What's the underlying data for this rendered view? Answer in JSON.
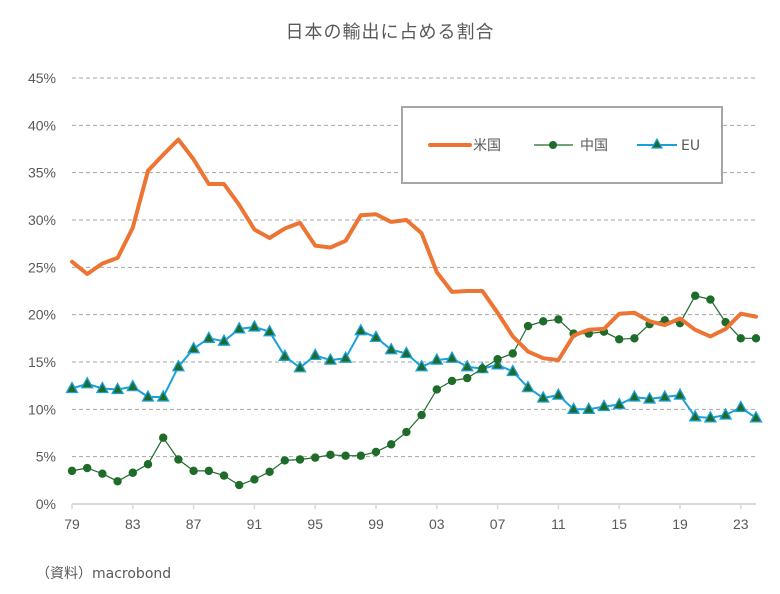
{
  "chart_data": {
    "type": "line",
    "title": "日本の輸出に占める割合",
    "xlabel": "",
    "ylabel": "",
    "ylim": [
      0,
      45
    ],
    "y_ticks": [
      "0%",
      "5%",
      "10%",
      "15%",
      "20%",
      "25%",
      "30%",
      "35%",
      "40%",
      "45%"
    ],
    "y_tick_values": [
      0,
      5,
      10,
      15,
      20,
      25,
      30,
      35,
      40,
      45
    ],
    "x_ticks": [
      "79",
      "83",
      "87",
      "91",
      "95",
      "99",
      "03",
      "07",
      "11",
      "15",
      "19",
      "23"
    ],
    "x_tick_years": [
      1979,
      1983,
      1987,
      1991,
      1995,
      1999,
      2003,
      2007,
      2011,
      2015,
      2019,
      2023
    ],
    "xlim": [
      1979,
      2024
    ],
    "grid": "horizontal-dashed",
    "legend_position": "top-right",
    "x": [
      1979,
      1980,
      1981,
      1982,
      1983,
      1984,
      1985,
      1986,
      1987,
      1988,
      1989,
      1990,
      1991,
      1992,
      1993,
      1994,
      1995,
      1996,
      1997,
      1998,
      1999,
      2000,
      2001,
      2002,
      2003,
      2004,
      2005,
      2006,
      2007,
      2008,
      2009,
      2010,
      2011,
      2012,
      2013,
      2014,
      2015,
      2016,
      2017,
      2018,
      2019,
      2020,
      2021,
      2022,
      2023,
      2024
    ],
    "series": [
      {
        "name": "米国",
        "color": "#ED7533",
        "marker": "none",
        "values": [
          25.6,
          24.3,
          25.4,
          26.0,
          29.2,
          35.2,
          36.9,
          38.5,
          36.4,
          33.8,
          33.8,
          31.6,
          29.0,
          28.1,
          29.1,
          29.7,
          27.3,
          27.1,
          27.8,
          30.5,
          30.6,
          29.8,
          30.0,
          28.6,
          24.5,
          22.4,
          22.5,
          22.5,
          20.2,
          17.7,
          16.1,
          15.4,
          15.2,
          17.8,
          18.4,
          18.5,
          20.1,
          20.2,
          19.3,
          18.9,
          19.6,
          18.4,
          17.7,
          18.5,
          20.1,
          19.8
        ]
      },
      {
        "name": "中国",
        "color": "#1E6B2A",
        "marker": "circle",
        "values": [
          3.5,
          3.8,
          3.2,
          2.4,
          3.3,
          4.2,
          7.0,
          4.7,
          3.5,
          3.5,
          3.0,
          2.0,
          2.6,
          3.4,
          4.6,
          4.7,
          4.9,
          5.2,
          5.1,
          5.1,
          5.5,
          6.3,
          7.6,
          9.4,
          12.1,
          13.0,
          13.3,
          14.3,
          15.3,
          15.9,
          18.8,
          19.3,
          19.5,
          18.0,
          18.0,
          18.2,
          17.4,
          17.5,
          19.0,
          19.4,
          19.1,
          22.0,
          21.6,
          19.2,
          17.5,
          17.5
        ]
      },
      {
        "name": "EU",
        "color": "#1BA1D8",
        "marker_fill": "#1E6B2A",
        "marker": "triangle",
        "values": [
          12.2,
          12.7,
          12.2,
          12.1,
          12.4,
          11.3,
          11.3,
          14.5,
          16.4,
          17.5,
          17.2,
          18.5,
          18.7,
          18.2,
          15.6,
          14.4,
          15.7,
          15.2,
          15.4,
          18.3,
          17.6,
          16.3,
          15.9,
          14.5,
          15.2,
          15.4,
          14.5,
          14.3,
          14.7,
          14.0,
          12.3,
          11.2,
          11.5,
          10.0,
          10.0,
          10.3,
          10.5,
          11.3,
          11.1,
          11.3,
          11.5,
          9.2,
          9.1,
          9.4,
          10.2,
          9.1
        ]
      }
    ]
  },
  "source_note": "（資料）macrobond"
}
